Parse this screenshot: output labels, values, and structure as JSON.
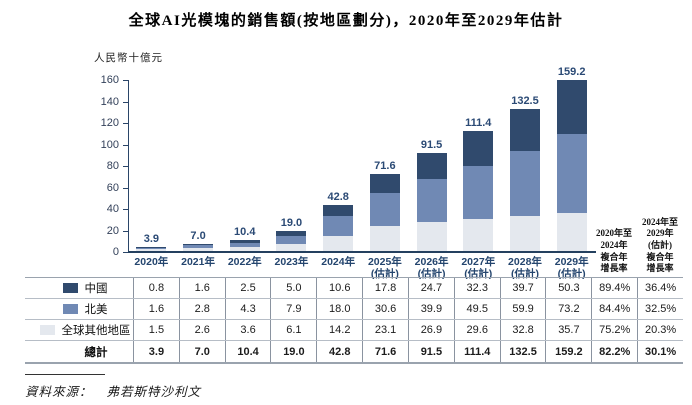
{
  "title": "全球AI光模塊的銷售額(按地區劃分)，2020年至2029年估計",
  "unit_label": "人民幣十億元",
  "cagr_headers": [
    "2020年至\n2024年\n複合年\n增長率",
    "2024年至\n2029年\n(估計)\n複合年\n增長率"
  ],
  "source": {
    "label": "資料來源：",
    "value": "弗若斯特沙利文"
  },
  "chart_data": {
    "type": "bar",
    "subtype": "stacked-vertical",
    "title": "全球AI光模塊的銷售額(按地區劃分)，2020年至2029年估計",
    "ylabel": "人民幣十億元",
    "ylim": [
      0,
      160
    ],
    "yticks": [
      0,
      20,
      40,
      60,
      80,
      100,
      120,
      140,
      160
    ],
    "grid": false,
    "legend_position": "table-left-column",
    "categories": [
      "2020年",
      "2021年",
      "2022年",
      "2023年",
      "2024年",
      "2025年",
      "2026年",
      "2027年",
      "2028年",
      "2029年"
    ],
    "estimate_flags": [
      false,
      false,
      false,
      false,
      false,
      true,
      true,
      true,
      true,
      true
    ],
    "estimate_suffix": "(估計)",
    "series": [
      {
        "name": "中國",
        "color": "#304a6d",
        "values": [
          0.8,
          1.6,
          2.5,
          5.0,
          10.6,
          17.8,
          24.7,
          32.3,
          39.7,
          50.3
        ],
        "cagr_2020_2024": "89.4%",
        "cagr_2024_2029": "36.4%"
      },
      {
        "name": "北美",
        "color": "#7089b4",
        "values": [
          1.6,
          2.8,
          4.3,
          7.9,
          18.0,
          30.6,
          39.9,
          49.5,
          59.9,
          73.2
        ],
        "cagr_2020_2024": "84.4%",
        "cagr_2024_2029": "32.5%"
      },
      {
        "name": "全球其他地區",
        "color": "#e4e8ee",
        "values": [
          1.5,
          2.6,
          3.6,
          6.1,
          14.2,
          23.1,
          26.9,
          29.6,
          32.8,
          35.7
        ],
        "cagr_2020_2024": "75.2%",
        "cagr_2024_2029": "20.3%"
      }
    ],
    "totals": {
      "name": "總計",
      "values": [
        3.9,
        7.0,
        10.4,
        19.0,
        42.8,
        71.6,
        91.5,
        111.4,
        132.5,
        159.2
      ],
      "cagr_2020_2024": "82.2%",
      "cagr_2024_2029": "30.1%"
    }
  }
}
